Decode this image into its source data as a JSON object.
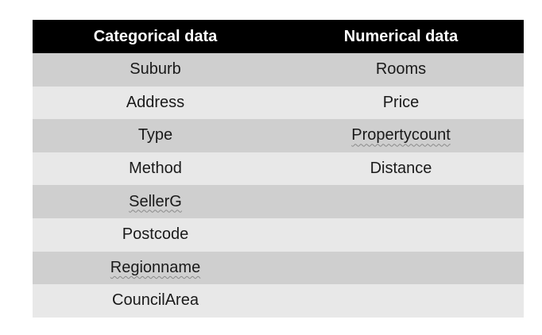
{
  "table": {
    "headers": [
      "Categorical data",
      "Numerical data"
    ],
    "rows": [
      {
        "categorical": "Suburb",
        "numerical": "Rooms"
      },
      {
        "categorical": "Address",
        "numerical": "Price"
      },
      {
        "categorical": "Type",
        "numerical": "Propertycount"
      },
      {
        "categorical": "Method",
        "numerical": "Distance"
      },
      {
        "categorical": "SellerG",
        "numerical": ""
      },
      {
        "categorical": "Postcode",
        "numerical": ""
      },
      {
        "categorical": "Regionname",
        "numerical": ""
      },
      {
        "categorical": "CouncilArea",
        "numerical": ""
      }
    ]
  }
}
